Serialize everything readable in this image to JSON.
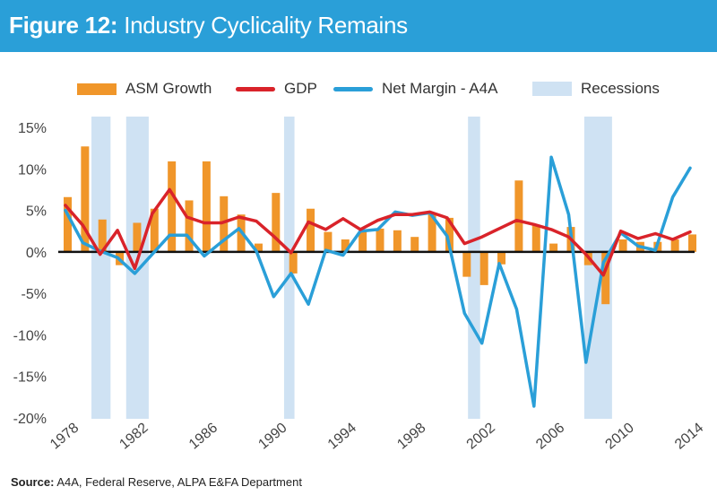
{
  "header": {
    "figure_label": "Figure 12:",
    "title": "Industry Cyclicality Remains"
  },
  "source": {
    "label": "Source:",
    "text": "A4A, Federal Reserve, ALPA E&FA Department"
  },
  "colors": {
    "header_bg": "#2a9fd8",
    "asm": "#f0962a",
    "gdp": "#d9232a",
    "net_margin": "#2a9fd8",
    "recession": "#cfe2f3"
  },
  "chart_data": {
    "type": "bar",
    "xlabel": "",
    "ylabel": "",
    "ylim": [
      -20,
      15
    ],
    "yticks": [
      15,
      10,
      5,
      0,
      -5,
      -10,
      -15,
      -20
    ],
    "ytick_labels": [
      "15%",
      "10%",
      "5%",
      "0%",
      "-5%",
      "-10%",
      "-15%",
      "-20%"
    ],
    "xtick_labels": [
      "1978",
      "1982",
      "1986",
      "1990",
      "1994",
      "1998",
      "2002",
      "2006",
      "2010",
      "2014"
    ],
    "x": [
      1978,
      1979,
      1980,
      1981,
      1982,
      1983,
      1984,
      1985,
      1986,
      1987,
      1988,
      1989,
      1990,
      1991,
      1992,
      1993,
      1994,
      1995,
      1996,
      1997,
      1998,
      1999,
      2000,
      2001,
      2002,
      2003,
      2004,
      2005,
      2006,
      2007,
      2008,
      2009,
      2010,
      2011,
      2012,
      2013,
      2014
    ],
    "legend": {
      "position": "top"
    },
    "series": [
      {
        "name": "ASM Growth",
        "type": "bar",
        "values": [
          6.6,
          12.7,
          3.9,
          -1.6,
          3.5,
          5.2,
          10.9,
          6.2,
          10.9,
          6.7,
          4.5,
          1.0,
          7.1,
          -2.6,
          5.2,
          2.4,
          1.5,
          2.5,
          2.8,
          2.6,
          1.8,
          4.6,
          4.1,
          -3.0,
          -4.0,
          -1.5,
          8.6,
          3.2,
          1.0,
          3.0,
          -1.6,
          -6.3,
          1.5,
          1.2,
          1.2,
          1.5,
          2.1
        ]
      },
      {
        "name": "GDP",
        "type": "line",
        "values": [
          5.6,
          3.2,
          -0.3,
          2.6,
          -2.0,
          4.6,
          7.5,
          4.2,
          3.5,
          3.5,
          4.2,
          3.7,
          1.9,
          -0.1,
          3.6,
          2.7,
          4.0,
          2.7,
          3.8,
          4.5,
          4.5,
          4.8,
          4.1,
          1.0,
          1.8,
          2.8,
          3.8,
          3.3,
          2.7,
          1.8,
          -0.3,
          -2.8,
          2.5,
          1.6,
          2.2,
          1.5,
          2.4
        ]
      },
      {
        "name": "Net Margin - A4A",
        "type": "line",
        "values": [
          5.0,
          1.1,
          0.1,
          -0.7,
          -2.6,
          -0.3,
          2.0,
          2.0,
          -0.5,
          1.2,
          2.8,
          0.1,
          -5.4,
          -2.6,
          -6.3,
          0.2,
          -0.4,
          2.5,
          2.7,
          4.8,
          4.4,
          4.7,
          1.9,
          -7.4,
          -11.0,
          -1.4,
          -6.9,
          -18.6,
          11.4,
          4.5,
          -13.3,
          -1.3,
          2.3,
          0.7,
          0.2,
          6.6,
          10.1
        ]
      },
      {
        "name": "Recessions",
        "type": "band",
        "ranges": [
          [
            1979.5,
            1980.6
          ],
          [
            1981.5,
            1982.8
          ],
          [
            1990.6,
            1991.2
          ],
          [
            2001.2,
            2001.9
          ],
          [
            2007.9,
            2009.5
          ]
        ]
      }
    ]
  }
}
